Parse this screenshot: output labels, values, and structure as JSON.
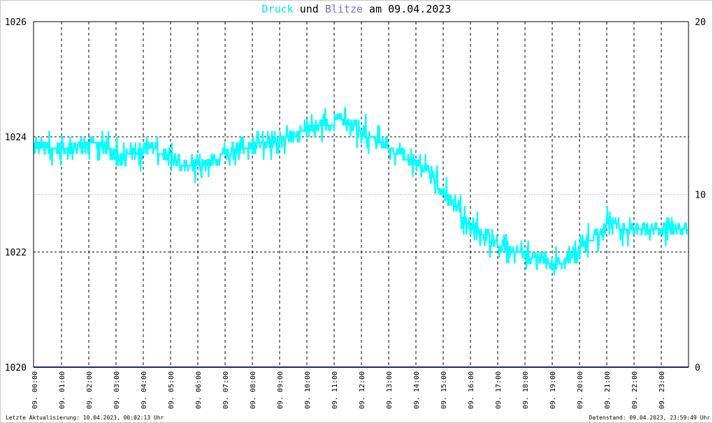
{
  "title": {
    "part1": "Druck",
    "part2": " und ",
    "part3": "Blitze",
    "part4": " am 09.04.2023",
    "color_druck": "#00e8e8",
    "color_blitze": "#7070e0"
  },
  "footer": {
    "left": "Letzte Aktualisierung: 10.04.2023, 00:02:13 Uhr",
    "right": "Datenstand: 09.04.2023, 23:59:49 Uhr"
  },
  "chart_data": {
    "type": "line",
    "grid": true,
    "x_tick_labels": [
      "09. 00:00",
      "09. 01:00",
      "09. 02:00",
      "09. 03:00",
      "09. 04:00",
      "09. 05:00",
      "09. 06:00",
      "09. 07:00",
      "09. 08:00",
      "09. 09:00",
      "09. 10:00",
      "09. 11:00",
      "09. 12:00",
      "09. 13:00",
      "09. 14:00",
      "09. 15:00",
      "09. 16:00",
      "09. 17:00",
      "09. 18:00",
      "09. 19:00",
      "09. 20:00",
      "09. 21:00",
      "09. 22:00",
      "09. 23:00"
    ],
    "y_left": {
      "ticks": [
        "1020",
        "1022",
        "1024",
        "1026"
      ],
      "ylim": [
        1020,
        1026
      ]
    },
    "y_right": {
      "ticks": [
        "0",
        "10",
        "20"
      ],
      "ylim": [
        0,
        20
      ]
    },
    "series": [
      {
        "name": "Druck",
        "axis": "left",
        "color": "#00ffff",
        "x_hours": [
          0,
          0.5,
          1,
          1.5,
          2,
          2.5,
          3,
          3.5,
          4,
          4.5,
          5,
          5.5,
          6,
          6.5,
          7,
          7.5,
          8,
          8.5,
          9,
          9.5,
          10,
          10.5,
          11,
          11.5,
          12,
          12.5,
          13,
          13.5,
          14,
          14.5,
          15,
          15.5,
          16,
          16.5,
          17,
          17.5,
          18,
          18.5,
          19,
          19.5,
          20,
          20.5,
          21,
          21.5,
          22,
          22.5,
          23,
          23.5,
          24
        ],
        "values": [
          1023.85,
          1023.85,
          1023.75,
          1023.85,
          1023.95,
          1023.85,
          1023.7,
          1023.7,
          1023.75,
          1023.75,
          1023.65,
          1023.5,
          1023.5,
          1023.55,
          1023.7,
          1023.8,
          1023.85,
          1023.85,
          1023.95,
          1024.0,
          1024.15,
          1024.2,
          1024.25,
          1024.25,
          1024.1,
          1023.95,
          1023.85,
          1023.65,
          1023.55,
          1023.35,
          1023.0,
          1022.8,
          1022.45,
          1022.3,
          1022.15,
          1022.0,
          1021.95,
          1021.9,
          1021.8,
          1021.85,
          1022.05,
          1022.25,
          1022.45,
          1022.45,
          1022.4,
          1022.4,
          1022.45,
          1022.4,
          1022.35
        ]
      },
      {
        "name": "Blitze",
        "axis": "right",
        "color": "#202080",
        "x_hours": [
          0,
          24
        ],
        "values": [
          0,
          0
        ]
      }
    ]
  }
}
